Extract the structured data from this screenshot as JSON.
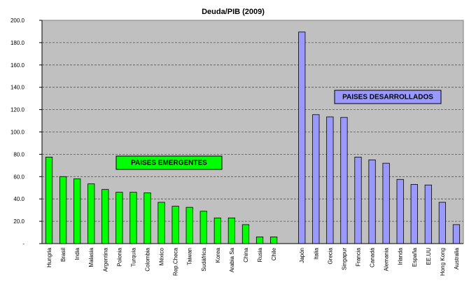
{
  "chart_data": {
    "type": "bar",
    "title": "Deuda/PIB (2009)",
    "xlabel": "",
    "ylabel": "",
    "ylim": [
      0,
      200
    ],
    "yticks": [
      "-",
      "20.0",
      "40.0",
      "60.0",
      "80.0",
      "100.0",
      "120.0",
      "140.0",
      "160.0",
      "180.0",
      "200.0"
    ],
    "grid": true,
    "categories": [
      "Hungria",
      "Brasil",
      "India",
      "Malasia",
      "Argentina",
      "Polonia",
      "Turquía",
      "Colombia",
      "México",
      "Rep.Checa",
      "Taiwan",
      "Sudáfrica",
      "Korea",
      "Arabia Sa",
      "China",
      "Rusia",
      "Chile",
      "",
      "Japón",
      "Italia",
      "Grecia",
      "Singapur",
      "Francia",
      "Canadá",
      "Alemania",
      "Irlanda",
      "España",
      "EE.UU",
      "Hong Kong",
      "Australia"
    ],
    "values": [
      77.5,
      60,
      58,
      53.5,
      48.5,
      46,
      46,
      45.5,
      37,
      33.5,
      32.5,
      29,
      23,
      23,
      17,
      6,
      6,
      null,
      189.5,
      115.5,
      113.5,
      113,
      77.5,
      75,
      72,
      57.5,
      53,
      52.5,
      37,
      17
    ],
    "groups": [
      {
        "label": "PAISES EMERGENTES",
        "color": "#00ff00",
        "indices": [
          0,
          1,
          2,
          3,
          4,
          5,
          6,
          7,
          8,
          9,
          10,
          11,
          12,
          13,
          14,
          15,
          16
        ]
      },
      {
        "label": "PAISES DESARROLLADOS",
        "color": "#9999ff",
        "indices": [
          18,
          19,
          20,
          21,
          22,
          23,
          24,
          25,
          26,
          27,
          28,
          29
        ]
      }
    ],
    "plot_background": "#c0c0c0",
    "grid_color": "#555555"
  }
}
